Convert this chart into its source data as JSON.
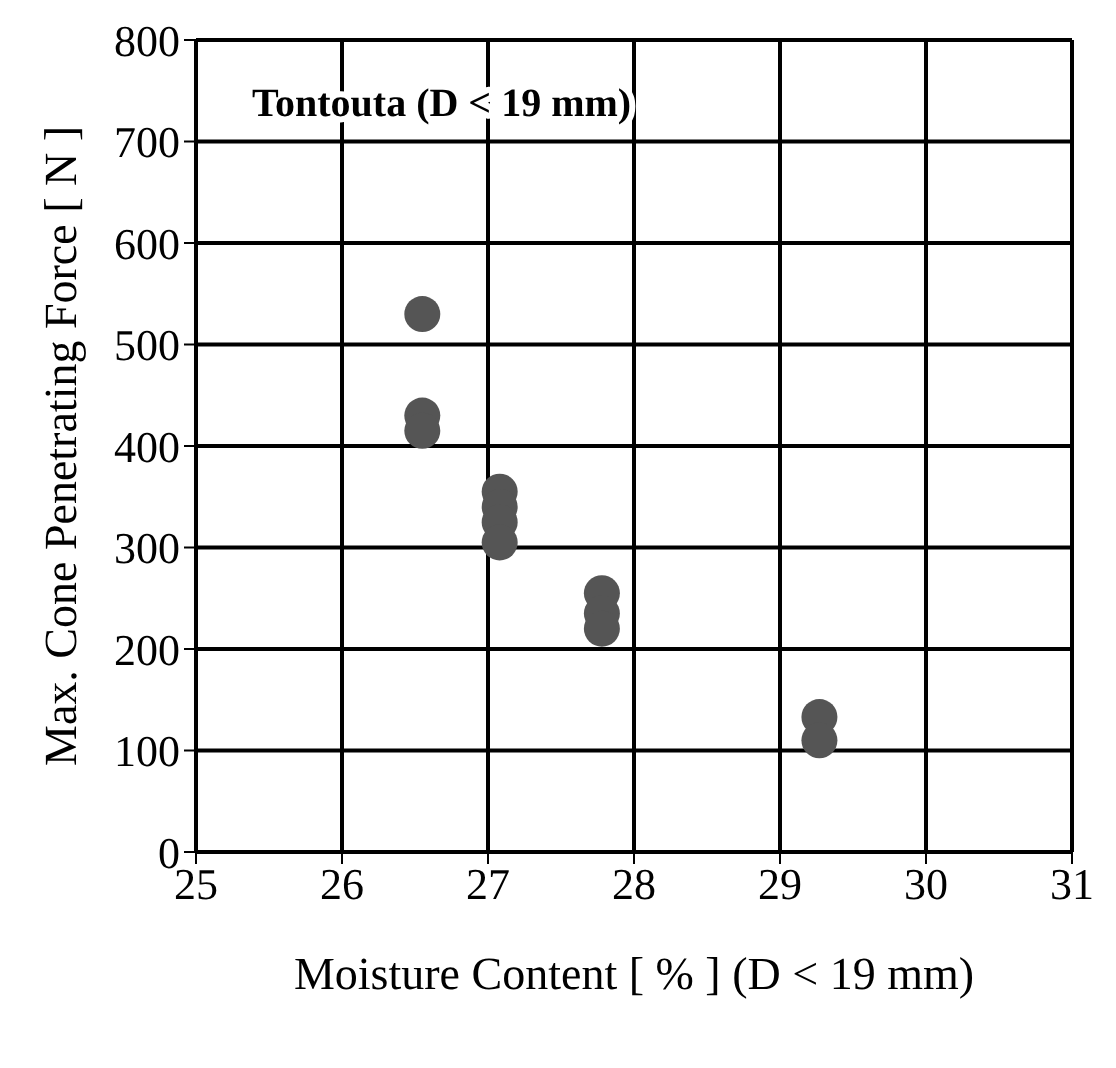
{
  "chart_data": {
    "type": "scatter",
    "title": "Tontouta  (D < 19 mm)",
    "xlabel": "Moisture Content [ % ] (D < 19 mm)",
    "ylabel": "Max. Cone Penetrating Force [ N ]",
    "x": [
      26.55,
      26.55,
      26.55,
      27.08,
      27.08,
      27.08,
      27.08,
      27.78,
      27.78,
      27.78,
      29.27,
      29.27
    ],
    "series": [
      {
        "color": "#555555",
        "values": [
          530,
          430,
          415,
          355,
          340,
          325,
          305,
          255,
          235,
          220,
          133,
          110
        ]
      }
    ],
    "xlim": [
      25,
      31
    ],
    "xticks": [
      25,
      26,
      27,
      28,
      29,
      30,
      31
    ],
    "ylim": [
      0,
      800
    ],
    "yticks": [
      0,
      100,
      200,
      300,
      400,
      500,
      600,
      700,
      800
    ],
    "grid": true,
    "marker": "circle"
  }
}
